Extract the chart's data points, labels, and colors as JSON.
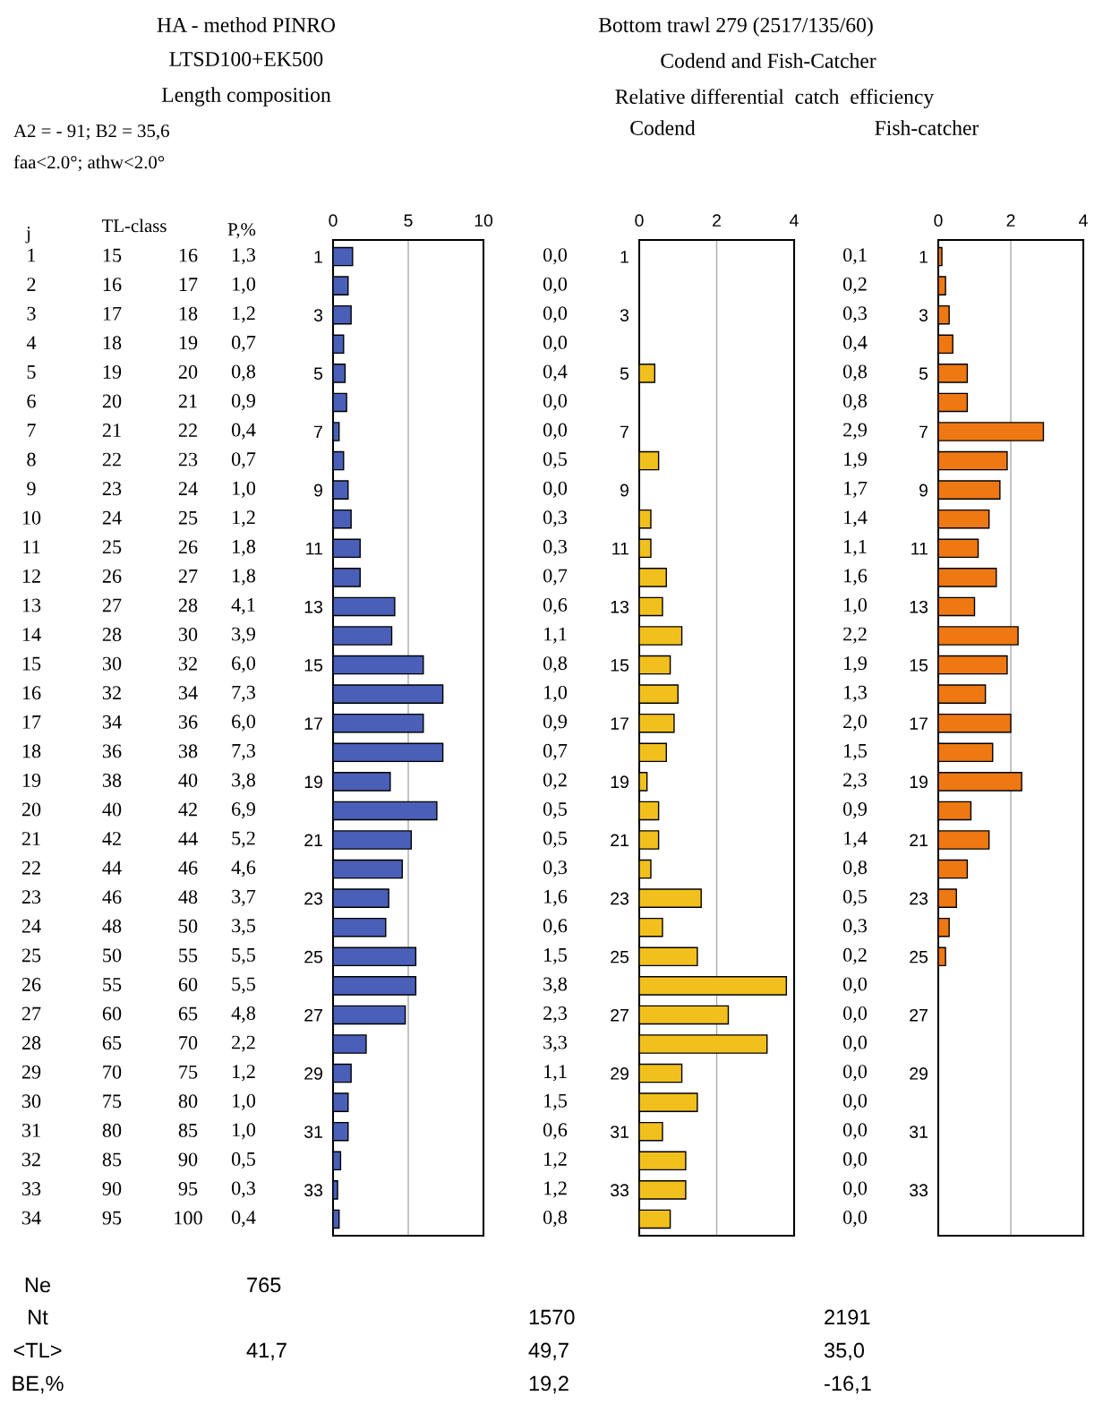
{
  "chart_data": [
    {
      "type": "other",
      "title": "HA - method PINRO",
      "subtitle": "LTSD100+EK500",
      "annotations": [
        "Length composition",
        "A2 = - 91; B2 = 35,6",
        "faa<2.0°; athw<2.0°",
        "j",
        "TL-class",
        "P,%",
        "1",
        "15",
        "16",
        "2",
        "16",
        "17",
        "3",
        "17",
        "18",
        "4",
        "18",
        "19",
        "5",
        "19",
        "20",
        "6",
        "20",
        "21",
        "7",
        "21",
        "22",
        "8",
        "22",
        "23",
        "9",
        "23",
        "24",
        "10",
        "24",
        "25",
        "11",
        "25",
        "26",
        "12",
        "26",
        "27",
        "13",
        "27",
        "28",
        "14",
        "28",
        "30",
        "15",
        "30",
        "32",
        "16",
        "32",
        "34",
        "17",
        "34",
        "36",
        "18",
        "36",
        "38",
        "19",
        "38",
        "40",
        "20",
        "40",
        "42",
        "21",
        "42",
        "44",
        "22",
        "44",
        "46",
        "23",
        "46",
        "48",
        "24",
        "48",
        "50",
        "25",
        "50",
        "55",
        "26",
        "55",
        "60",
        "27",
        "60",
        "65",
        "28",
        "65",
        "70",
        "29",
        "70",
        "75",
        "30",
        "75",
        "80",
        "31",
        "80",
        "85",
        "32",
        "85",
        "90",
        "33",
        "90",
        "95",
        "34",
        "95",
        "100",
        "Ne",
        "Nt",
        "<TL>",
        "BE,%",
        "765",
        "1570",
        "2191",
        "41,7",
        "49,7",
        "35,0",
        "19,2",
        "-16,1"
      ]
    },
    {
      "type": "bar",
      "orientation": "horizontal",
      "color": "#4a5fb8",
      "categories": [
        "1",
        null,
        "3",
        null,
        "5",
        null,
        "7",
        null,
        "9",
        null,
        "11",
        null,
        "13",
        null,
        "15",
        null,
        "17",
        null,
        "19",
        null,
        "21",
        null,
        "23",
        null,
        "25",
        null,
        "27",
        null,
        "29",
        null,
        "31",
        null,
        "33",
        null
      ],
      "values": [
        1.3,
        1.0,
        1.2,
        0.7,
        0.8,
        0.9,
        0.4,
        0.7,
        1.0,
        1.2,
        1.8,
        1.8,
        4.1,
        3.9,
        6.0,
        7.3,
        6.0,
        7.3,
        3.8,
        6.9,
        5.2,
        4.6,
        3.7,
        3.5,
        5.5,
        5.5,
        4.8,
        2.2,
        1.2,
        1.0,
        1.0,
        0.5,
        0.3,
        0.4
      ],
      "value_labels": [
        "1,3",
        "1,0",
        "1,2",
        "0,7",
        "0,8",
        "0,9",
        "0,4",
        "0,7",
        "1,0",
        "1,2",
        "1,8",
        "1,8",
        "4,1",
        "3,9",
        "6,0",
        "7,3",
        "6,0",
        "7,3",
        "3,8",
        "6,9",
        "5,2",
        "4,6",
        "3,7",
        "3,5",
        "5,5",
        "5,5",
        "4,8",
        "2,2",
        "1,2",
        "1,0",
        "1,0",
        "0,5",
        "0,3",
        "0,4"
      ],
      "xlim": [
        0,
        10
      ],
      "xticks": [
        0,
        5,
        10
      ],
      "grid": "x"
    },
    {
      "type": "bar",
      "orientation": "horizontal",
      "color": "#f2c01c",
      "title": "Codend",
      "annotations": [
        "Bottom trawl 279 (2517/135/60)",
        "Codend and Fish-Catcher",
        "Relative differential  catch  efficiency"
      ],
      "categories": [
        "1",
        null,
        "3",
        null,
        "5",
        null,
        "7",
        null,
        "9",
        null,
        "11",
        null,
        "13",
        null,
        "15",
        null,
        "17",
        null,
        "19",
        null,
        "21",
        null,
        "23",
        null,
        "25",
        null,
        "27",
        null,
        "29",
        null,
        "31",
        null,
        "33",
        null
      ],
      "values": [
        0.0,
        0.0,
        0.0,
        0.0,
        0.4,
        0.0,
        0.0,
        0.5,
        0.0,
        0.3,
        0.3,
        0.7,
        0.6,
        1.1,
        0.8,
        1.0,
        0.9,
        0.7,
        0.2,
        0.5,
        0.5,
        0.3,
        1.6,
        0.6,
        1.5,
        3.8,
        2.3,
        3.3,
        1.1,
        1.5,
        0.6,
        1.2,
        1.2,
        0.8
      ],
      "value_labels": [
        "0,0",
        "0,0",
        "0,0",
        "0,0",
        "0,4",
        "0,0",
        "0,0",
        "0,5",
        "0,0",
        "0,3",
        "0,3",
        "0,7",
        "0,6",
        "1,1",
        "0,8",
        "1,0",
        "0,9",
        "0,7",
        "0,2",
        "0,5",
        "0,5",
        "0,3",
        "1,6",
        "0,6",
        "1,5",
        "3,8",
        "2,3",
        "3,3",
        "1,1",
        "1,5",
        "0,6",
        "1,2",
        "1,2",
        "0,8"
      ],
      "xlim": [
        0,
        4
      ],
      "xticks": [
        0,
        2,
        4
      ],
      "grid": "x"
    },
    {
      "type": "bar",
      "orientation": "horizontal",
      "color": "#ee7812",
      "title": "Fish-catcher",
      "categories": [
        "1",
        null,
        "3",
        null,
        "5",
        null,
        "7",
        null,
        "9",
        null,
        "11",
        null,
        "13",
        null,
        "15",
        null,
        "17",
        null,
        "19",
        null,
        "21",
        null,
        "23",
        null,
        "25",
        null,
        "27",
        null,
        "29",
        null,
        "31",
        null,
        "33",
        null
      ],
      "values": [
        0.1,
        0.2,
        0.3,
        0.4,
        0.8,
        0.8,
        2.9,
        1.9,
        1.7,
        1.4,
        1.1,
        1.6,
        1.0,
        2.2,
        1.9,
        1.3,
        2.0,
        1.5,
        2.3,
        0.9,
        1.4,
        0.8,
        0.5,
        0.3,
        0.2,
        0.0,
        0.0,
        0.0,
        0.0,
        0.0,
        0.0,
        0.0,
        0.0,
        0.0
      ],
      "value_labels": [
        "0,1",
        "0,2",
        "0,3",
        "0,4",
        "0,8",
        "0,8",
        "2,9",
        "1,9",
        "1,7",
        "1,4",
        "1,1",
        "1,6",
        "1,0",
        "2,2",
        "1,9",
        "1,3",
        "2,0",
        "1,5",
        "2,3",
        "0,9",
        "1,4",
        "0,8",
        "0,5",
        "0,3",
        "0,2",
        "0,0",
        "0,0",
        "0,0",
        "0,0",
        "0,0",
        "0,0",
        "0,0",
        "0,0",
        "0,0"
      ],
      "xlim": [
        0,
        4
      ],
      "xticks": [
        0,
        2,
        4
      ],
      "grid": "x"
    }
  ]
}
